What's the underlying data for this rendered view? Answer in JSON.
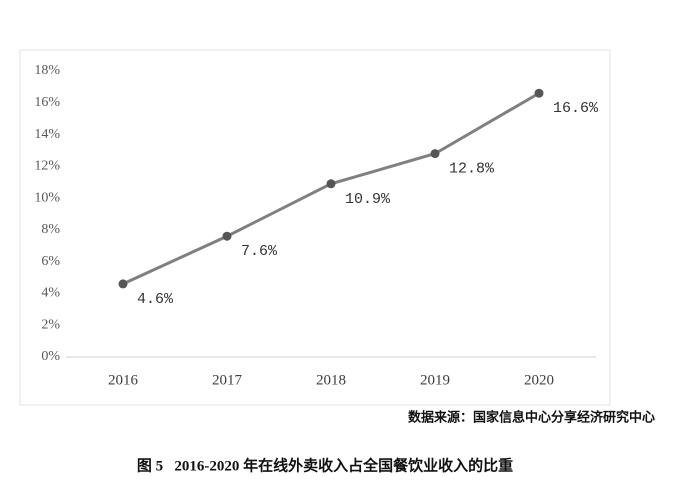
{
  "chart_data": {
    "type": "line",
    "categories": [
      "2016",
      "2017",
      "2018",
      "2019",
      "2020"
    ],
    "values": [
      4.6,
      7.6,
      10.9,
      12.8,
      16.6
    ],
    "value_labels": [
      "4.6%",
      "7.6%",
      "10.9%",
      "12.8%",
      "16.6%"
    ],
    "color": "#808080",
    "marker_color": "#555555",
    "ylim": [
      0,
      18
    ],
    "yticks": [
      {
        "value": 0,
        "label": "0%"
      },
      {
        "value": 2,
        "label": "2%"
      },
      {
        "value": 4,
        "label": "4%"
      },
      {
        "value": 6,
        "label": "6%"
      },
      {
        "value": 8,
        "label": "8%"
      },
      {
        "value": 10,
        "label": "10%"
      },
      {
        "value": 12,
        "label": "12%"
      },
      {
        "value": 14,
        "label": "14%"
      },
      {
        "value": 16,
        "label": "16%"
      },
      {
        "value": 18,
        "label": "18%"
      }
    ],
    "grid": false,
    "source": "数据来源：国家信息中心分享经济研究中心",
    "caption": "图 5   2016-2020 年在线外卖收入占全国餐饮业收入的比重"
  }
}
